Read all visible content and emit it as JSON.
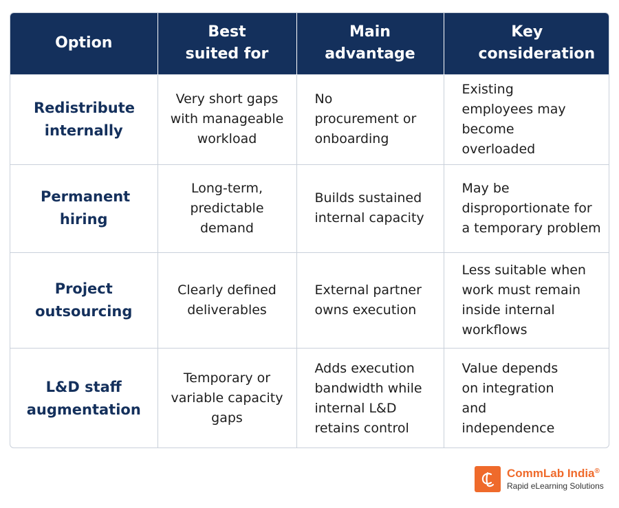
{
  "table": {
    "headers": [
      "Option",
      "Best suited for",
      "Main advantage",
      "Key consideration"
    ],
    "rows": [
      {
        "option": "Redistribute internally",
        "best_suited_for": "Very short gaps with manageable workload",
        "main_advantage": "No procurement or onboarding",
        "key_consideration": "Existing employees may become overloaded"
      },
      {
        "option": "Permanent hiring",
        "best_suited_for": "Long-term, predictable demand",
        "main_advantage": "Builds sustained internal capacity",
        "key_consideration": "May be disproportionate for a temporary problem"
      },
      {
        "option": "Project outsourcing",
        "best_suited_for": "Clearly defined deliverables",
        "main_advantage": "External partner owns execution",
        "key_consideration": "Less suitable when work must remain inside internal workflows"
      },
      {
        "option": "L&D staff augmentation",
        "best_suited_for": "Temporary or variable capacity gaps",
        "main_advantage": "Adds execution bandwidth while internal L&D retains control",
        "key_consideration": "Value depends on integration and independence"
      }
    ]
  },
  "logo": {
    "brand": "CommLab India",
    "registered": "®",
    "tagline": "Rapid eLearning Solutions",
    "icon": "cl-monogram-icon",
    "accent_color": "#ef6a2b"
  },
  "colors": {
    "header_bg": "#14305c",
    "option_text": "#14305c"
  }
}
